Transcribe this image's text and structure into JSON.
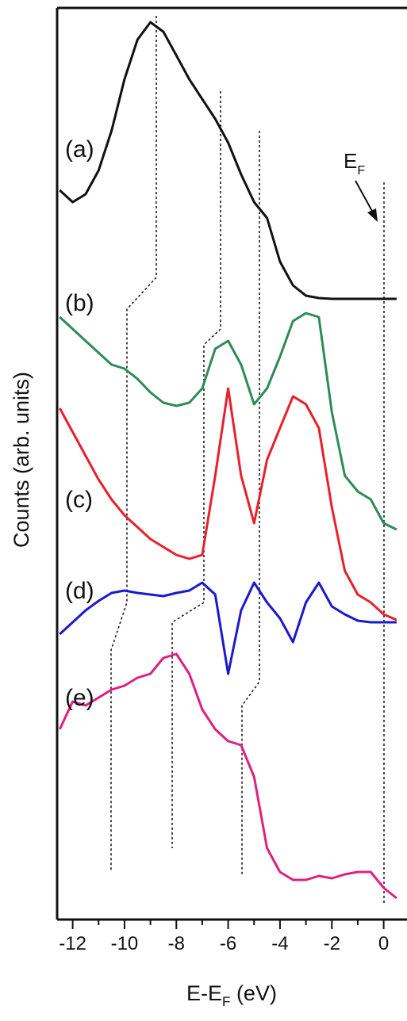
{
  "chart_data": {
    "type": "line",
    "y_label": "Counts (arb. units)",
    "x_label": [
      "E-E",
      "F",
      " (eV)"
    ],
    "fermi_label": [
      "E",
      "F"
    ],
    "x": [
      -12.5,
      -12,
      -11.5,
      -11,
      -10.5,
      -10,
      -9.5,
      -9,
      -8.5,
      -8,
      -7.5,
      -7,
      -6.5,
      -6,
      -5.5,
      -5,
      -4.5,
      -4,
      -3.5,
      -3,
      -2.5,
      -2,
      -1.5,
      -1,
      -0.5,
      0,
      0.5
    ],
    "series": [
      {
        "name": "(a)",
        "color": "#111111",
        "values": [
          92.0,
          90.5,
          91.5,
          94.5,
          99.5,
          106,
          111,
          113.2,
          112,
          109,
          106,
          103.5,
          101,
          98,
          94,
          90.5,
          88.5,
          83,
          80,
          78.7,
          78.4,
          78.3,
          78.3,
          78.3,
          78.3,
          78.3,
          78.3
        ]
      },
      {
        "name": "(b)",
        "color": "#2e8b57",
        "values": [
          76,
          74.5,
          73,
          71.5,
          70,
          69.5,
          68.2,
          66.5,
          65.2,
          64.8,
          65.2,
          67,
          72,
          73,
          70,
          65,
          67,
          71,
          75.5,
          76.5,
          76,
          64,
          56,
          54,
          53,
          50,
          49.2
        ]
      },
      {
        "name": "(c)",
        "color": "#e8202a",
        "values": [
          64.5,
          61.5,
          58.5,
          55.5,
          53,
          51,
          49.5,
          48,
          47,
          46,
          45.5,
          46,
          56,
          67,
          56,
          50,
          58,
          62,
          66,
          65,
          62,
          52,
          44,
          41,
          40,
          38.5,
          37.8
        ]
      },
      {
        "name": "(d)",
        "color": "#1a1acc",
        "values": [
          36,
          37.5,
          39,
          40.2,
          41.2,
          41.5,
          41.2,
          41,
          40.8,
          41.2,
          41.5,
          42.5,
          41,
          31,
          39,
          42.5,
          40,
          38,
          35,
          40,
          42.5,
          39.5,
          38.5,
          37.7,
          37.5,
          37.5,
          37.5
        ]
      },
      {
        "name": "(e)",
        "color": "#e0207f",
        "values": [
          24,
          27.5,
          27,
          28,
          29,
          29.5,
          30.5,
          31,
          33,
          33.5,
          31,
          26.5,
          24,
          22.5,
          22,
          18,
          9,
          6,
          5,
          5,
          5.5,
          5.2,
          5.7,
          6,
          6,
          4,
          2.7
        ]
      }
    ],
    "xlim": [
      -12.6,
      0.9
    ],
    "ylim": [
      0,
      115
    ],
    "xticks": [
      -12,
      -10,
      -8,
      -6,
      -4,
      -2,
      0
    ],
    "xticks_minor": [
      -11,
      -9,
      -7,
      -5,
      -3,
      -1
    ]
  }
}
